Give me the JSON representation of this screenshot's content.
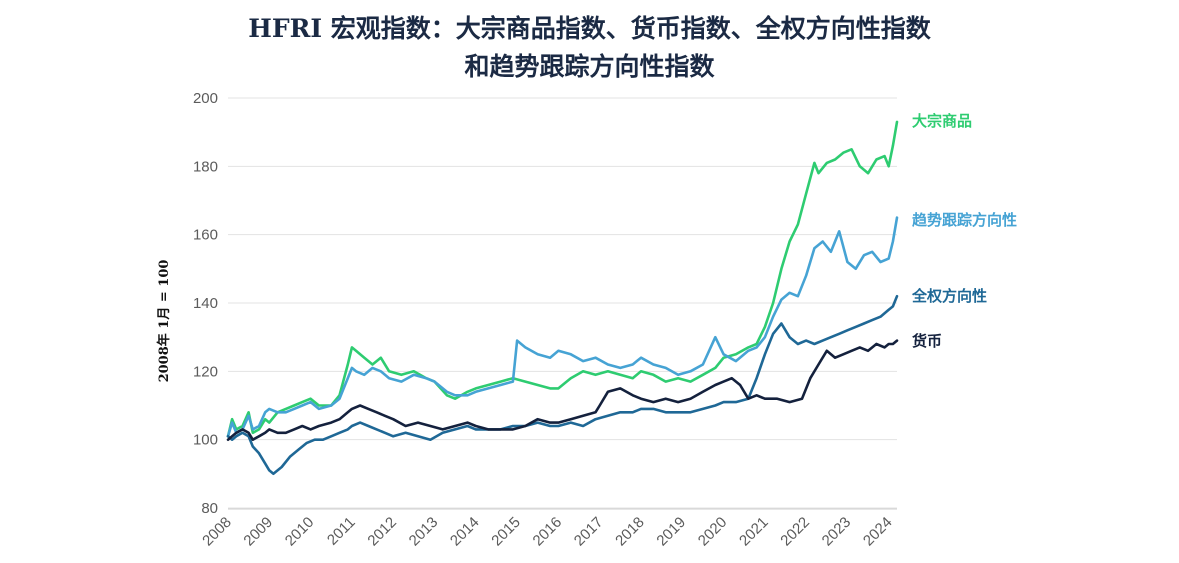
{
  "title_line1": "HFRI 宏观指数：大宗商品指数、货币指数、全权方向性指数",
  "title_line2": "和趋势跟踪方向性指数",
  "chart_data": {
    "type": "line",
    "title": "HFRI 宏观指数：大宗商品指数、货币指数、全权方向性指数 和趋势跟踪方向性指数",
    "ylabel": "2008年 1月 = 100",
    "xlabel": "",
    "ylim": [
      80,
      200
    ],
    "xlim": [
      2008,
      2024.2
    ],
    "yticks": [
      80,
      100,
      120,
      140,
      160,
      180,
      200
    ],
    "xticks": [
      "2008",
      "2009",
      "2010",
      "2011",
      "2012",
      "2013",
      "2014",
      "2015",
      "2016",
      "2017",
      "2018",
      "2019",
      "2020",
      "2021",
      "2022",
      "2023",
      "2024"
    ],
    "grid": "horizontal",
    "legend": "right, at line ends",
    "series": [
      {
        "name": "大宗商品",
        "color": "#2ecc71",
        "x": [
          2008.0,
          2008.1,
          2008.2,
          2008.35,
          2008.5,
          2008.6,
          2008.75,
          2008.9,
          2009.0,
          2009.2,
          2009.4,
          2009.6,
          2009.8,
          2010.0,
          2010.2,
          2010.5,
          2010.7,
          2010.9,
          2011.0,
          2011.1,
          2011.3,
          2011.5,
          2011.7,
          2011.9,
          2012.2,
          2012.5,
          2012.8,
          2013.0,
          2013.3,
          2013.5,
          2013.8,
          2014.0,
          2014.3,
          2014.6,
          2014.9,
          2015.2,
          2015.5,
          2015.8,
          2016.0,
          2016.3,
          2016.6,
          2016.9,
          2017.2,
          2017.5,
          2017.8,
          2018.0,
          2018.3,
          2018.6,
          2018.9,
          2019.2,
          2019.5,
          2019.8,
          2020.0,
          2020.3,
          2020.6,
          2020.8,
          2021.0,
          2021.2,
          2021.4,
          2021.6,
          2021.8,
          2022.0,
          2022.2,
          2022.3,
          2022.5,
          2022.7,
          2022.9,
          2023.1,
          2023.3,
          2023.5,
          2023.7,
          2023.9,
          2024.0,
          2024.1,
          2024.2
        ],
        "values": [
          101,
          106,
          103,
          104,
          108,
          102,
          103,
          106,
          105,
          108,
          109,
          110,
          111,
          112,
          110,
          110,
          113,
          122,
          127,
          126,
          124,
          122,
          124,
          120,
          119,
          120,
          118,
          117,
          113,
          112,
          114,
          115,
          116,
          117,
          118,
          117,
          116,
          115,
          115,
          118,
          120,
          119,
          120,
          119,
          118,
          120,
          119,
          117,
          118,
          117,
          119,
          121,
          124,
          125,
          127,
          128,
          133,
          140,
          150,
          158,
          163,
          172,
          181,
          178,
          181,
          182,
          184,
          185,
          180,
          178,
          182,
          183,
          180,
          186,
          193
        ]
      },
      {
        "name": "趋势跟踪方向性",
        "color": "#46a3d4",
        "x": [
          2008.0,
          2008.1,
          2008.2,
          2008.35,
          2008.5,
          2008.6,
          2008.75,
          2008.9,
          2009.0,
          2009.2,
          2009.4,
          2009.6,
          2009.8,
          2010.0,
          2010.2,
          2010.5,
          2010.7,
          2010.9,
          2011.0,
          2011.1,
          2011.3,
          2011.5,
          2011.7,
          2011.9,
          2012.2,
          2012.5,
          2012.8,
          2013.0,
          2013.3,
          2013.5,
          2013.8,
          2014.0,
          2014.3,
          2014.6,
          2014.9,
          2015.0,
          2015.2,
          2015.5,
          2015.8,
          2016.0,
          2016.3,
          2016.6,
          2016.9,
          2017.2,
          2017.5,
          2017.8,
          2018.0,
          2018.3,
          2018.6,
          2018.9,
          2019.2,
          2019.5,
          2019.8,
          2020.0,
          2020.3,
          2020.6,
          2020.8,
          2021.0,
          2021.2,
          2021.4,
          2021.6,
          2021.8,
          2022.0,
          2022.2,
          2022.4,
          2022.6,
          2022.8,
          2023.0,
          2023.2,
          2023.4,
          2023.6,
          2023.8,
          2024.0,
          2024.1,
          2024.2
        ],
        "values": [
          101,
          105,
          102,
          103,
          107,
          103,
          104,
          108,
          109,
          108,
          108,
          109,
          110,
          111,
          109,
          110,
          112,
          118,
          121,
          120,
          119,
          121,
          120,
          118,
          117,
          119,
          118,
          117,
          114,
          113,
          113,
          114,
          115,
          116,
          117,
          129,
          127,
          125,
          124,
          126,
          125,
          123,
          124,
          122,
          121,
          122,
          124,
          122,
          121,
          119,
          120,
          122,
          130,
          125,
          123,
          126,
          127,
          130,
          136,
          141,
          143,
          142,
          148,
          156,
          158,
          155,
          161,
          152,
          150,
          154,
          155,
          152,
          153,
          158,
          165
        ]
      },
      {
        "name": "全权方向性",
        "color": "#1f6896",
        "x": [
          2008.0,
          2008.1,
          2008.2,
          2008.35,
          2008.5,
          2008.6,
          2008.75,
          2008.9,
          2009.0,
          2009.1,
          2009.3,
          2009.5,
          2009.7,
          2009.9,
          2010.1,
          2010.3,
          2010.5,
          2010.7,
          2010.9,
          2011.0,
          2011.2,
          2011.4,
          2011.6,
          2011.8,
          2012.0,
          2012.3,
          2012.6,
          2012.9,
          2013.2,
          2013.5,
          2013.8,
          2014.0,
          2014.3,
          2014.6,
          2014.9,
          2015.2,
          2015.5,
          2015.8,
          2016.0,
          2016.3,
          2016.6,
          2016.9,
          2017.2,
          2017.5,
          2017.8,
          2018.0,
          2018.3,
          2018.6,
          2018.9,
          2019.2,
          2019.5,
          2019.8,
          2020.0,
          2020.3,
          2020.6,
          2020.8,
          2021.0,
          2021.2,
          2021.4,
          2021.6,
          2021.8,
          2022.0,
          2022.2,
          2022.4,
          2022.6,
          2022.8,
          2023.0,
          2023.2,
          2023.4,
          2023.6,
          2023.8,
          2024.0,
          2024.1,
          2024.2
        ],
        "values": [
          101,
          100,
          101,
          102,
          101,
          98,
          96,
          93,
          91,
          90,
          92,
          95,
          97,
          99,
          100,
          100,
          101,
          102,
          103,
          104,
          105,
          104,
          103,
          102,
          101,
          102,
          101,
          100,
          102,
          103,
          104,
          103,
          103,
          103,
          104,
          104,
          105,
          104,
          104,
          105,
          104,
          106,
          107,
          108,
          108,
          109,
          109,
          108,
          108,
          108,
          109,
          110,
          111,
          111,
          112,
          118,
          125,
          131,
          134,
          130,
          128,
          129,
          128,
          129,
          130,
          131,
          132,
          133,
          134,
          135,
          136,
          138,
          139,
          142
        ]
      },
      {
        "name": "货币",
        "color": "#14213d",
        "x": [
          2008.0,
          2008.1,
          2008.2,
          2008.35,
          2008.5,
          2008.6,
          2008.75,
          2008.9,
          2009.0,
          2009.2,
          2009.4,
          2009.6,
          2009.8,
          2010.0,
          2010.2,
          2010.5,
          2010.7,
          2010.9,
          2011.0,
          2011.2,
          2011.4,
          2011.6,
          2011.8,
          2012.0,
          2012.3,
          2012.6,
          2012.9,
          2013.2,
          2013.5,
          2013.8,
          2014.0,
          2014.3,
          2014.6,
          2014.9,
          2015.2,
          2015.5,
          2015.8,
          2016.0,
          2016.3,
          2016.6,
          2016.9,
          2017.0,
          2017.2,
          2017.5,
          2017.8,
          2018.0,
          2018.3,
          2018.6,
          2018.9,
          2019.2,
          2019.5,
          2019.8,
          2020.0,
          2020.2,
          2020.4,
          2020.6,
          2020.8,
          2021.0,
          2021.3,
          2021.6,
          2021.9,
          2022.1,
          2022.3,
          2022.5,
          2022.7,
          2022.9,
          2023.1,
          2023.3,
          2023.5,
          2023.7,
          2023.9,
          2024.0,
          2024.1,
          2024.2
        ],
        "values": [
          100,
          101,
          102,
          103,
          102,
          100,
          101,
          102,
          103,
          102,
          102,
          103,
          104,
          103,
          104,
          105,
          106,
          108,
          109,
          110,
          109,
          108,
          107,
          106,
          104,
          105,
          104,
          103,
          104,
          105,
          104,
          103,
          103,
          103,
          104,
          106,
          105,
          105,
          106,
          107,
          108,
          110,
          114,
          115,
          113,
          112,
          111,
          112,
          111,
          112,
          114,
          116,
          117,
          118,
          116,
          112,
          113,
          112,
          112,
          111,
          112,
          118,
          122,
          126,
          124,
          125,
          126,
          127,
          126,
          128,
          127,
          128,
          128,
          129
        ]
      }
    ]
  }
}
